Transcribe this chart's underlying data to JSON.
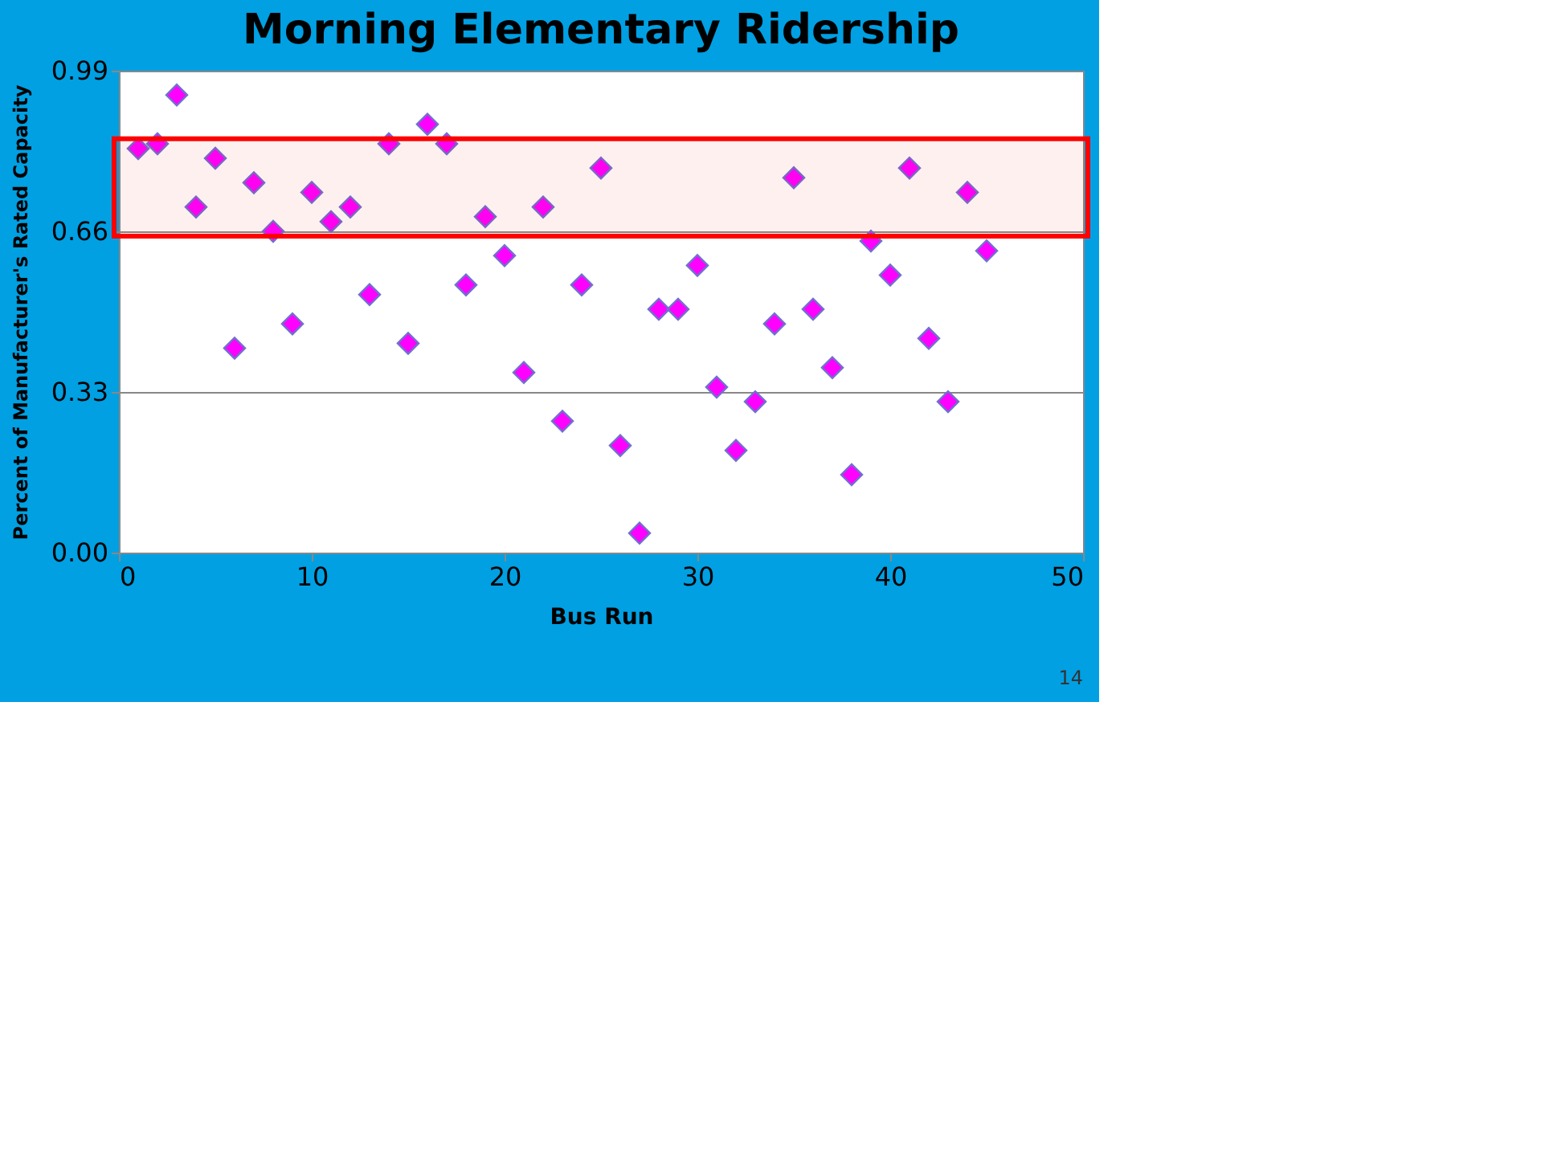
{
  "chart_data": {
    "type": "scatter",
    "title": "Morning Elementary Ridership",
    "xlabel": "Bus Run",
    "ylabel": "Percent of Manufacturer's Rated Capacity",
    "x": [
      1,
      2,
      3,
      4,
      5,
      6,
      7,
      8,
      9,
      10,
      11,
      12,
      13,
      14,
      15,
      16,
      17,
      18,
      19,
      20,
      21,
      22,
      23,
      24,
      25,
      26,
      27,
      28,
      29,
      30,
      31,
      32,
      33,
      34,
      35,
      36,
      37,
      38,
      39,
      40,
      41,
      42,
      43,
      44,
      45
    ],
    "series": [
      {
        "color": "#ff00ff",
        "values": [
          0.83,
          0.84,
          0.94,
          0.71,
          0.81,
          0.42,
          0.76,
          0.66,
          0.47,
          0.74,
          0.68,
          0.71,
          0.53,
          0.84,
          0.43,
          0.88,
          0.84,
          0.55,
          0.69,
          0.61,
          0.37,
          0.71,
          0.27,
          0.55,
          0.79,
          0.22,
          0.04,
          0.5,
          0.5,
          0.59,
          0.34,
          0.21,
          0.31,
          0.47,
          0.77,
          0.5,
          0.38,
          0.16,
          0.64,
          0.57,
          0.79,
          0.44,
          0.31,
          0.74,
          0.62
        ]
      }
    ],
    "xlim": [
      0,
      50
    ],
    "xticks": [
      0,
      10,
      20,
      30,
      40,
      50
    ],
    "ylim": [
      0,
      0.99
    ],
    "yticks": [
      {
        "value": 0,
        "label": "0.00"
      },
      {
        "value": 0.33,
        "label": "0.33"
      },
      {
        "value": 0.66,
        "label": "0.66"
      },
      {
        "value": 0.99,
        "label": "0.99"
      }
    ],
    "bands": [
      {
        "axis": "y",
        "from": 0.65,
        "to": 0.85,
        "color": "#ff0000"
      }
    ],
    "grid": "y",
    "marker": "diamond",
    "annotations": [
      "14"
    ]
  }
}
